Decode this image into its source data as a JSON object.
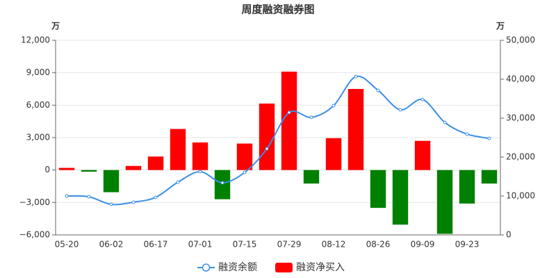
{
  "chart_data": {
    "type": "bar",
    "title": "周度融资融券图",
    "y_unit": "万",
    "y2_unit": "万",
    "categories": [
      "05-20",
      null,
      "06-02",
      null,
      "06-17",
      null,
      "07-01",
      null,
      "07-15",
      null,
      "07-29",
      null,
      "08-12",
      null,
      "08-26",
      null,
      "09-09",
      null,
      "09-23",
      null
    ],
    "series": [
      {
        "name": "融资余额",
        "type": "line",
        "axis": "y2",
        "color": "#3a8ee6",
        "values": [
          10000,
          9800,
          7850,
          8400,
          9650,
          13550,
          16250,
          13400,
          16050,
          22150,
          31450,
          30200,
          33200,
          40700,
          37150,
          32150,
          34800,
          28900,
          25900,
          24800
        ]
      },
      {
        "name": "融资净买入",
        "type": "bar",
        "axis": "y",
        "color": "#ff0000",
        "negative_color": "#008000",
        "values": [
          200,
          -150,
          -2050,
          380,
          1250,
          3800,
          2550,
          -2700,
          2450,
          6150,
          9100,
          -1250,
          2950,
          7500,
          -3500,
          -5050,
          2700,
          -5900,
          -3100,
          -1250
        ]
      }
    ],
    "ylim": [
      -6000,
      12000
    ],
    "yticks": [
      {
        "value": -6000,
        "label": "−6,000"
      },
      {
        "value": -3000,
        "label": "−3,000"
      },
      0,
      {
        "value": 3000,
        "label": "3,000"
      },
      {
        "value": 6000,
        "label": "6,000"
      },
      {
        "value": 9000,
        "label": "9,000"
      },
      {
        "value": 12000,
        "label": "12,000"
      }
    ],
    "y2lim": [
      0,
      50000
    ],
    "y2ticks": [
      0,
      {
        "value": 10000,
        "label": "10,000"
      },
      {
        "value": 20000,
        "label": "20,000"
      },
      {
        "value": 30000,
        "label": "30,000"
      },
      {
        "value": 40000,
        "label": "40,000"
      },
      {
        "value": 50000,
        "label": "50,000"
      }
    ],
    "grid": true,
    "legend": "bottom"
  }
}
